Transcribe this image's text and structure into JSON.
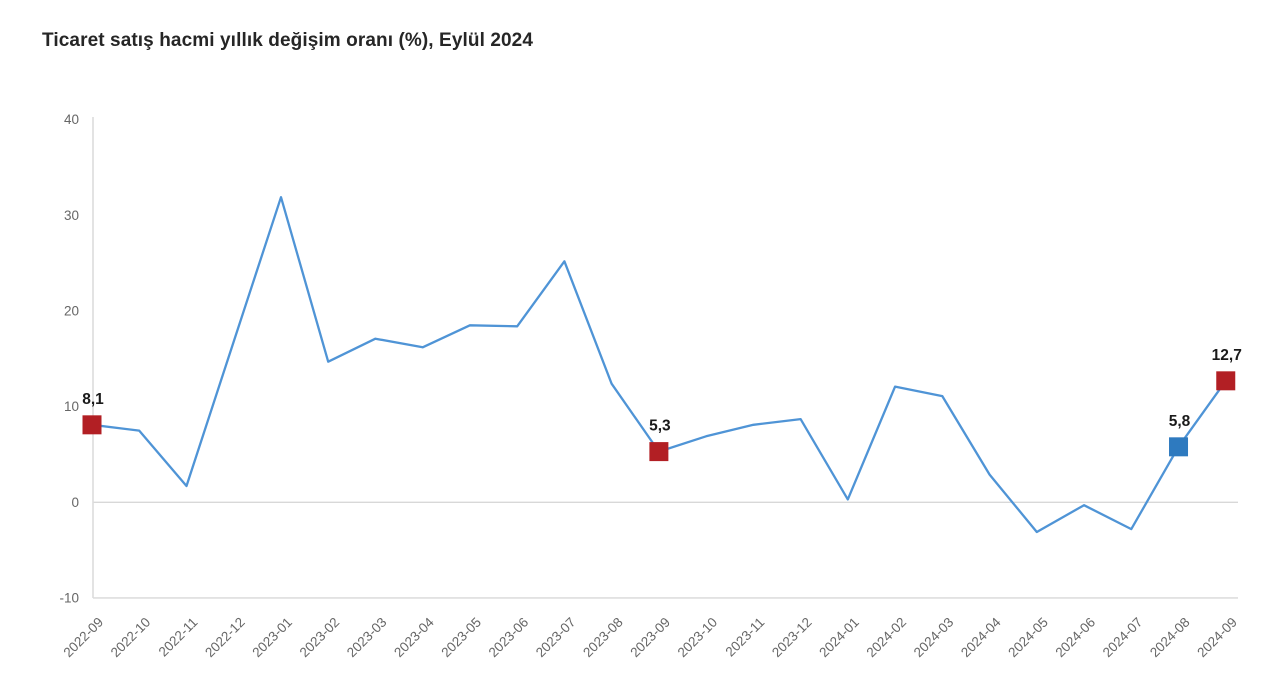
{
  "title": "Ticaret satış hacmi yıllık değişim oranı (%), Eylül 2024",
  "chart_data": {
    "type": "line",
    "title": "Ticaret satış hacmi yıllık değişim oranı (%), Eylül 2024",
    "x": [
      "2022-09",
      "2022-10",
      "2022-11",
      "2022-12",
      "2023-01",
      "2023-02",
      "2023-03",
      "2023-04",
      "2023-05",
      "2023-06",
      "2023-07",
      "2023-08",
      "2023-09",
      "2023-10",
      "2023-11",
      "2023-12",
      "2024-01",
      "2024-02",
      "2024-03",
      "2024-04",
      "2024-05",
      "2024-06",
      "2024-07",
      "2024-08",
      "2024-09"
    ],
    "values": [
      8.1,
      7.5,
      1.7,
      16.8,
      31.9,
      14.7,
      17.1,
      16.2,
      18.5,
      18.4,
      25.2,
      12.4,
      5.3,
      6.9,
      8.1,
      8.7,
      0.3,
      12.1,
      11.1,
      2.9,
      -3.1,
      -0.3,
      -2.8,
      5.8,
      12.7
    ],
    "xlabel": "",
    "ylabel": "",
    "ylim": [
      -10,
      40
    ],
    "yticks": [
      40,
      30,
      20,
      10,
      0,
      -10
    ],
    "gridlines_at": [
      0,
      -10
    ],
    "legend": "none",
    "line_color": "#4f94d6",
    "highlighted_points": [
      {
        "x": "2022-09",
        "index": 0,
        "value": 8.1,
        "label": "8,1",
        "marker_color": "#b21f24"
      },
      {
        "x": "2023-09",
        "index": 12,
        "value": 5.3,
        "label": "5,3",
        "marker_color": "#b21f24"
      },
      {
        "x": "2024-08",
        "index": 23,
        "value": 5.8,
        "label": "5,8",
        "marker_color": "#2e7abf"
      },
      {
        "x": "2024-09",
        "index": 24,
        "value": 12.7,
        "label": "12,7",
        "marker_color": "#b21f24"
      }
    ]
  }
}
